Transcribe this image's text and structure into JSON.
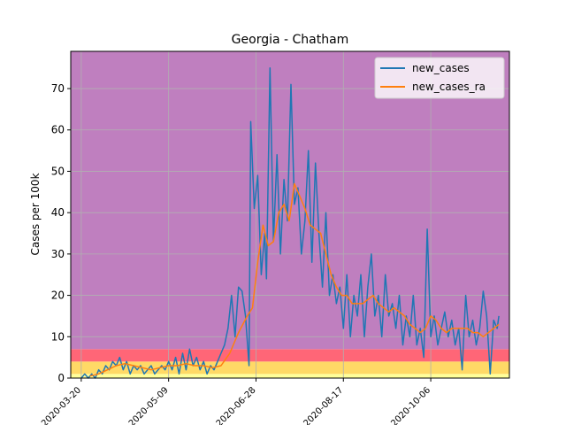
{
  "chart_data": {
    "type": "line",
    "title": "Georgia - Chatham",
    "xlabel": "",
    "ylabel": "Cases per 100k",
    "x_range": [
      "2020-03-14",
      "2020-11-20"
    ],
    "ylim": [
      0,
      79
    ],
    "grid": true,
    "legend_position": "top-right",
    "x_ticks": [
      "2020-03-20",
      "2020-05-09",
      "2020-06-28",
      "2020-08-17",
      "2020-10-06"
    ],
    "y_ticks": [
      0,
      10,
      20,
      30,
      40,
      50,
      60,
      70
    ],
    "background_bands": [
      {
        "from": 0,
        "to": 1,
        "color": "#ffff99"
      },
      {
        "from": 1,
        "to": 4,
        "color": "#ffd966"
      },
      {
        "from": 4,
        "to": 7,
        "color": "#ff6677"
      },
      {
        "from": 7,
        "to": 79,
        "color": "#bf7fbf"
      }
    ],
    "series": [
      {
        "name": "new_cases",
        "color": "#1f77b4",
        "points": [
          [
            "2020-03-20",
            0
          ],
          [
            "2020-03-22",
            1
          ],
          [
            "2020-03-24",
            0
          ],
          [
            "2020-03-26",
            1
          ],
          [
            "2020-03-28",
            0
          ],
          [
            "2020-03-30",
            2
          ],
          [
            "2020-04-01",
            1
          ],
          [
            "2020-04-03",
            3
          ],
          [
            "2020-04-05",
            2
          ],
          [
            "2020-04-07",
            4
          ],
          [
            "2020-04-09",
            3
          ],
          [
            "2020-04-11",
            5
          ],
          [
            "2020-04-13",
            2
          ],
          [
            "2020-04-15",
            4
          ],
          [
            "2020-04-17",
            1
          ],
          [
            "2020-04-19",
            3
          ],
          [
            "2020-04-21",
            2
          ],
          [
            "2020-04-23",
            3
          ],
          [
            "2020-04-25",
            1
          ],
          [
            "2020-04-27",
            2
          ],
          [
            "2020-04-29",
            3
          ],
          [
            "2020-05-01",
            1
          ],
          [
            "2020-05-03",
            2
          ],
          [
            "2020-05-05",
            3
          ],
          [
            "2020-05-07",
            2
          ],
          [
            "2020-05-09",
            4
          ],
          [
            "2020-05-11",
            2
          ],
          [
            "2020-05-13",
            5
          ],
          [
            "2020-05-15",
            1
          ],
          [
            "2020-05-17",
            6
          ],
          [
            "2020-05-19",
            2
          ],
          [
            "2020-05-21",
            7
          ],
          [
            "2020-05-23",
            3
          ],
          [
            "2020-05-25",
            5
          ],
          [
            "2020-05-27",
            2
          ],
          [
            "2020-05-29",
            4
          ],
          [
            "2020-05-31",
            1
          ],
          [
            "2020-06-02",
            3
          ],
          [
            "2020-06-04",
            2
          ],
          [
            "2020-06-06",
            4
          ],
          [
            "2020-06-08",
            6
          ],
          [
            "2020-06-10",
            8
          ],
          [
            "2020-06-12",
            12
          ],
          [
            "2020-06-14",
            20
          ],
          [
            "2020-06-16",
            10
          ],
          [
            "2020-06-18",
            22
          ],
          [
            "2020-06-20",
            21
          ],
          [
            "2020-06-22",
            15
          ],
          [
            "2020-06-24",
            3
          ],
          [
            "2020-06-25",
            62
          ],
          [
            "2020-06-27",
            41
          ],
          [
            "2020-06-29",
            49
          ],
          [
            "2020-07-01",
            25
          ],
          [
            "2020-07-03",
            35
          ],
          [
            "2020-07-04",
            24
          ],
          [
            "2020-07-06",
            75
          ],
          [
            "2020-07-08",
            33
          ],
          [
            "2020-07-10",
            54
          ],
          [
            "2020-07-12",
            30
          ],
          [
            "2020-07-14",
            48
          ],
          [
            "2020-07-16",
            38
          ],
          [
            "2020-07-18",
            71
          ],
          [
            "2020-07-20",
            42
          ],
          [
            "2020-07-22",
            46
          ],
          [
            "2020-07-24",
            30
          ],
          [
            "2020-07-26",
            38
          ],
          [
            "2020-07-28",
            55
          ],
          [
            "2020-07-30",
            28
          ],
          [
            "2020-08-01",
            52
          ],
          [
            "2020-08-03",
            35
          ],
          [
            "2020-08-05",
            22
          ],
          [
            "2020-08-07",
            40
          ],
          [
            "2020-08-09",
            20
          ],
          [
            "2020-08-11",
            25
          ],
          [
            "2020-08-13",
            18
          ],
          [
            "2020-08-15",
            22
          ],
          [
            "2020-08-17",
            12
          ],
          [
            "2020-08-19",
            25
          ],
          [
            "2020-08-21",
            10
          ],
          [
            "2020-08-23",
            20
          ],
          [
            "2020-08-25",
            15
          ],
          [
            "2020-08-27",
            25
          ],
          [
            "2020-08-29",
            10
          ],
          [
            "2020-08-31",
            22
          ],
          [
            "2020-09-02",
            30
          ],
          [
            "2020-09-04",
            15
          ],
          [
            "2020-09-06",
            20
          ],
          [
            "2020-09-08",
            10
          ],
          [
            "2020-09-10",
            25
          ],
          [
            "2020-09-12",
            15
          ],
          [
            "2020-09-14",
            18
          ],
          [
            "2020-09-16",
            12
          ],
          [
            "2020-09-18",
            20
          ],
          [
            "2020-09-20",
            8
          ],
          [
            "2020-09-22",
            15
          ],
          [
            "2020-09-24",
            10
          ],
          [
            "2020-09-26",
            20
          ],
          [
            "2020-09-28",
            8
          ],
          [
            "2020-09-30",
            12
          ],
          [
            "2020-10-02",
            5
          ],
          [
            "2020-10-04",
            36
          ],
          [
            "2020-10-06",
            10
          ],
          [
            "2020-10-08",
            15
          ],
          [
            "2020-10-10",
            8
          ],
          [
            "2020-10-12",
            12
          ],
          [
            "2020-10-14",
            16
          ],
          [
            "2020-10-16",
            10
          ],
          [
            "2020-10-18",
            14
          ],
          [
            "2020-10-20",
            8
          ],
          [
            "2020-10-22",
            12
          ],
          [
            "2020-10-24",
            2
          ],
          [
            "2020-10-26",
            20
          ],
          [
            "2020-10-28",
            10
          ],
          [
            "2020-10-30",
            14
          ],
          [
            "2020-11-01",
            8
          ],
          [
            "2020-11-03",
            12
          ],
          [
            "2020-11-05",
            21
          ],
          [
            "2020-11-07",
            15
          ],
          [
            "2020-11-09",
            1
          ],
          [
            "2020-11-11",
            14
          ],
          [
            "2020-11-13",
            12
          ],
          [
            "2020-11-14",
            15
          ]
        ]
      },
      {
        "name": "new_cases_ra",
        "color": "#ff7f0e",
        "points": [
          [
            "2020-03-25",
            0.5
          ],
          [
            "2020-03-30",
            1
          ],
          [
            "2020-04-04",
            2
          ],
          [
            "2020-04-09",
            3
          ],
          [
            "2020-04-14",
            3.5
          ],
          [
            "2020-04-19",
            3
          ],
          [
            "2020-04-24",
            2.5
          ],
          [
            "2020-04-29",
            2
          ],
          [
            "2020-05-04",
            2.5
          ],
          [
            "2020-05-09",
            3
          ],
          [
            "2020-05-14",
            3
          ],
          [
            "2020-05-19",
            3.5
          ],
          [
            "2020-05-24",
            3
          ],
          [
            "2020-05-29",
            3
          ],
          [
            "2020-06-03",
            2.5
          ],
          [
            "2020-06-08",
            3
          ],
          [
            "2020-06-13",
            6
          ],
          [
            "2020-06-18",
            11
          ],
          [
            "2020-06-23",
            15
          ],
          [
            "2020-06-26",
            17
          ],
          [
            "2020-06-29",
            28
          ],
          [
            "2020-07-02",
            37
          ],
          [
            "2020-07-05",
            32
          ],
          [
            "2020-07-08",
            33
          ],
          [
            "2020-07-11",
            40
          ],
          [
            "2020-07-14",
            42
          ],
          [
            "2020-07-17",
            38
          ],
          [
            "2020-07-20",
            47
          ],
          [
            "2020-07-23",
            44
          ],
          [
            "2020-07-26",
            41
          ],
          [
            "2020-07-29",
            37
          ],
          [
            "2020-08-01",
            36
          ],
          [
            "2020-08-04",
            35
          ],
          [
            "2020-08-07",
            30
          ],
          [
            "2020-08-10",
            25
          ],
          [
            "2020-08-13",
            22
          ],
          [
            "2020-08-16",
            20
          ],
          [
            "2020-08-19",
            20
          ],
          [
            "2020-08-22",
            18
          ],
          [
            "2020-08-25",
            18
          ],
          [
            "2020-08-28",
            18
          ],
          [
            "2020-08-31",
            19
          ],
          [
            "2020-09-03",
            20
          ],
          [
            "2020-09-06",
            18
          ],
          [
            "2020-09-09",
            17
          ],
          [
            "2020-09-12",
            16
          ],
          [
            "2020-09-15",
            17
          ],
          [
            "2020-09-18",
            16
          ],
          [
            "2020-09-21",
            15
          ],
          [
            "2020-09-24",
            13
          ],
          [
            "2020-09-27",
            12
          ],
          [
            "2020-09-30",
            11
          ],
          [
            "2020-10-03",
            12
          ],
          [
            "2020-10-06",
            15
          ],
          [
            "2020-10-09",
            14
          ],
          [
            "2020-10-12",
            12
          ],
          [
            "2020-10-15",
            11
          ],
          [
            "2020-10-18",
            12
          ],
          [
            "2020-10-21",
            12
          ],
          [
            "2020-10-24",
            12
          ],
          [
            "2020-10-27",
            12
          ],
          [
            "2020-10-30",
            11
          ],
          [
            "2020-11-02",
            11
          ],
          [
            "2020-11-05",
            10
          ],
          [
            "2020-11-08",
            11
          ],
          [
            "2020-11-11",
            12
          ],
          [
            "2020-11-14",
            13
          ]
        ]
      }
    ]
  }
}
